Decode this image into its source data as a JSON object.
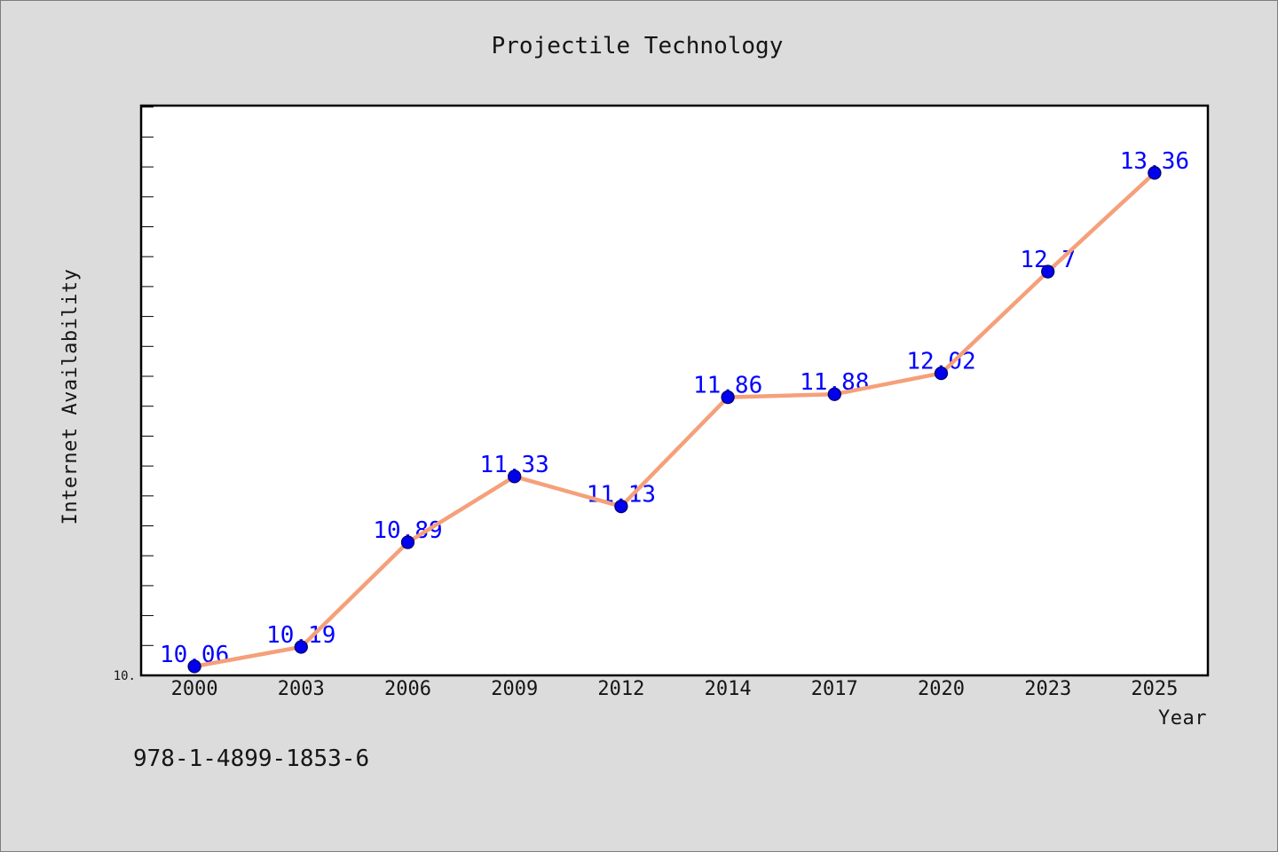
{
  "chart_data": {
    "type": "line",
    "title": "Projectile Technology",
    "xlabel": "Year",
    "ylabel": "Internet Availability",
    "categories": [
      "2000",
      "2003",
      "2006",
      "2009",
      "2012",
      "2014",
      "2017",
      "2020",
      "2023",
      "2025"
    ],
    "series": [
      {
        "values": [
          10.06,
          10.19,
          10.89,
          11.33,
          11.13,
          11.86,
          11.88,
          12.02,
          12.7,
          13.36
        ]
      }
    ],
    "data_labels_shown": true,
    "ylim": [
      10,
      13.81
    ],
    "yticks": [
      10
    ],
    "ytick_labels": [
      "10."
    ],
    "grid": false,
    "legend": "none",
    "colors": {
      "background": "#dcdcdc",
      "plot_background": "#ffffff",
      "line": "#f5a07a",
      "marker": "#0000ee",
      "marker_edge": "#00006e",
      "data_label": "#0000ff"
    }
  },
  "footer_text": "978-1-4899-1853-6"
}
